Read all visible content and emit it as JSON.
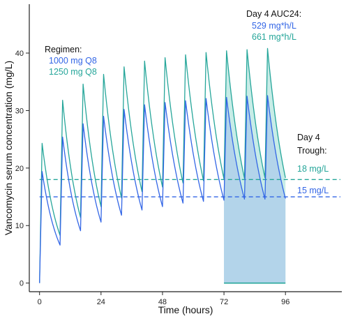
{
  "chart_data": {
    "type": "line",
    "xlabel": "Time (hours)",
    "ylabel": "Vancomycin serum concentration (mg/L)",
    "x_ticks": [
      0,
      24,
      48,
      72,
      96
    ],
    "y_ticks": [
      0,
      10,
      20,
      30,
      40
    ],
    "xlim": [
      -4,
      118
    ],
    "ylim": [
      -1.5,
      48.5
    ],
    "grid": false,
    "dosing_interval_h": 8,
    "auc_window_h": [
      72,
      96
    ],
    "series": [
      {
        "name": "1000 mg Q8",
        "color": "#3366e6",
        "x": [
          0,
          1,
          8,
          9,
          16,
          17,
          24,
          25,
          32,
          33,
          40,
          41,
          48,
          49,
          56,
          57,
          64,
          65,
          72,
          73,
          80,
          81,
          88,
          89,
          96
        ],
        "y": [
          0,
          19.4,
          6.6,
          25.4,
          9.1,
          27.7,
          10.6,
          29.0,
          11.8,
          30.2,
          12.7,
          31.0,
          13.3,
          31.4,
          13.9,
          31.7,
          14.2,
          32.1,
          14.4,
          32.3,
          14.6,
          32.5,
          14.6,
          32.6,
          14.7
        ],
        "trough_day4": 15,
        "auc24_day4": 529
      },
      {
        "name": "1250 mg Q8",
        "color": "#26a69a",
        "x": [
          0,
          1,
          8,
          9,
          16,
          17,
          24,
          25,
          32,
          33,
          40,
          41,
          48,
          49,
          56,
          57,
          64,
          65,
          72,
          73,
          80,
          81,
          88,
          89,
          96
        ],
        "y": [
          0,
          24.3,
          8.3,
          31.8,
          11.4,
          34.6,
          13.3,
          36.3,
          14.8,
          37.6,
          15.9,
          38.6,
          16.7,
          39.2,
          17.4,
          39.7,
          17.8,
          40.1,
          18.1,
          40.4,
          18.2,
          40.6,
          18.3,
          40.8,
          18.3
        ],
        "trough_day4": 18,
        "auc24_day4": 661
      }
    ],
    "annotations": {
      "regimen_title": "Regimen:",
      "regimen_1": "1000 mg Q8",
      "regimen_2": "1250 mg Q8",
      "auc_title": "Day 4 AUC24:",
      "auc_1": "529 mg*h/L",
      "auc_2": "661 mg*h/L",
      "trough_title_1": "Day 4",
      "trough_title_2": "Trough:",
      "trough_1": "15 mg/L",
      "trough_2": "18 mg/L"
    }
  }
}
